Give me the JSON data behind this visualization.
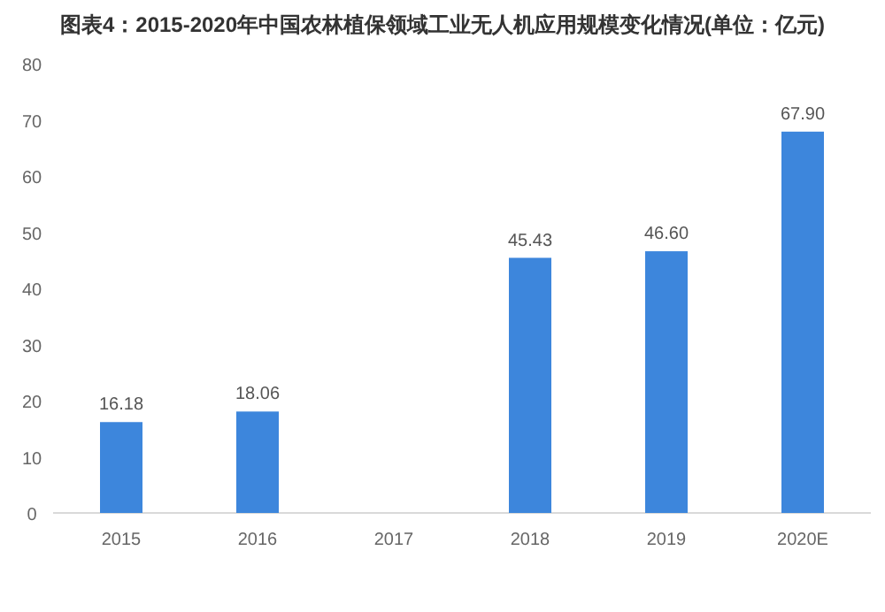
{
  "chart_data": {
    "type": "bar",
    "title": "图表4：2015-2020年中国农林植保领域工业无人机应用规模变化情况(单位：亿元)",
    "categories": [
      "2015",
      "2016",
      "2017",
      "2018",
      "2019",
      "2020E"
    ],
    "values": [
      16.18,
      18.06,
      null,
      45.43,
      46.6,
      67.9
    ],
    "value_labels": [
      "16.18",
      "18.06",
      null,
      "45.43",
      "46.60",
      "67.90"
    ],
    "color": "#3d86dc",
    "ylim": [
      0,
      80
    ],
    "yticks": [
      0,
      10,
      20,
      30,
      40,
      50,
      60,
      70,
      80
    ],
    "grid": false
  }
}
